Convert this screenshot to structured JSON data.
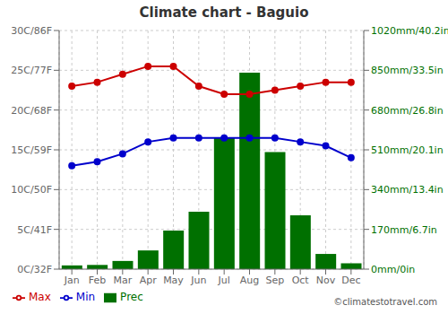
{
  "chart_data": {
    "type": "bar",
    "title": "Climate chart - Baguio",
    "categories": [
      "Jan",
      "Feb",
      "Mar",
      "Apr",
      "May",
      "Jun",
      "Jul",
      "Aug",
      "Sep",
      "Oct",
      "Nov",
      "Dec"
    ],
    "series": [
      {
        "name": "Prec",
        "type": "bar",
        "axis": "y2",
        "color": "#007000",
        "values": [
          16,
          18,
          35,
          80,
          165,
          245,
          560,
          840,
          500,
          230,
          65,
          25
        ]
      },
      {
        "name": "Min",
        "type": "line",
        "marker": "circle",
        "color": "#0000cc",
        "values": [
          13,
          13.5,
          14.5,
          16,
          16.5,
          16.5,
          16.5,
          16.5,
          16.5,
          16,
          15.5,
          14
        ]
      },
      {
        "name": "Max",
        "type": "line",
        "marker": "circle",
        "color": "#cc0000",
        "values": [
          23,
          23.5,
          24.5,
          25.5,
          25.5,
          23,
          22,
          22,
          22.5,
          23,
          23.5,
          23.5
        ]
      }
    ],
    "ylim": [
      0,
      30
    ],
    "yticks": [
      {
        "value": 0,
        "label": "0C/32F"
      },
      {
        "value": 5,
        "label": "5C/41F"
      },
      {
        "value": 10,
        "label": "10C/50F"
      },
      {
        "value": 15,
        "label": "15C/59F"
      },
      {
        "value": 20,
        "label": "20C/68F"
      },
      {
        "value": 25,
        "label": "25C/77F"
      },
      {
        "value": 30,
        "label": "30C/86F"
      }
    ],
    "y2lim": [
      0,
      1020
    ],
    "y2ticks": [
      {
        "value": 0,
        "label": "0mm/0in"
      },
      {
        "value": 170,
        "label": "170mm/6.7in"
      },
      {
        "value": 340,
        "label": "340mm/13.4in"
      },
      {
        "value": 510,
        "label": "510mm/20.1in"
      },
      {
        "value": 680,
        "label": "680mm/26.8in"
      },
      {
        "value": 850,
        "label": "850mm/33.5in"
      },
      {
        "value": 1020,
        "label": "1020mm/40.2in"
      }
    ],
    "grid": true,
    "legend": "bottom",
    "annotations": [
      "©climatestotravel.com"
    ]
  }
}
